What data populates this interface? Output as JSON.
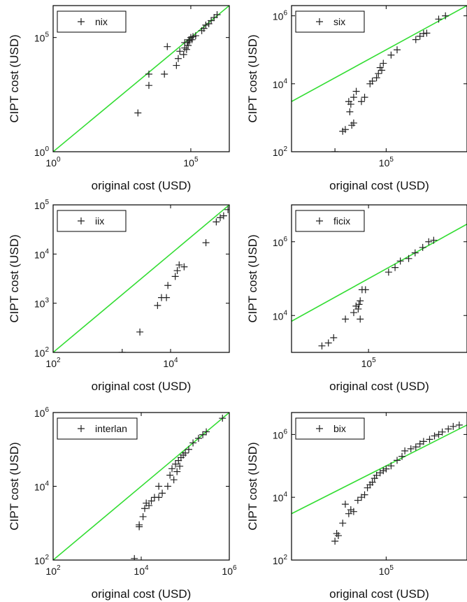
{
  "figure": {
    "colors": {
      "marker": "#222222",
      "diagonal": "#33dd33",
      "axes": "#000000"
    }
  },
  "chart_data": [
    {
      "type": "scatter",
      "scale": "log-log",
      "legend_label": "nix",
      "xlabel": "original cost (USD)",
      "ylabel": "CIPT cost (USD)",
      "xlim": [
        1,
        2500000
      ],
      "ylim": [
        1,
        2500000
      ],
      "xticks": [
        1,
        100000
      ],
      "yticks": [
        1,
        100000
      ],
      "diagonal": true,
      "points": [
        [
          1200,
          50
        ],
        [
          3000,
          2500
        ],
        [
          3000,
          800
        ],
        [
          11000,
          2500
        ],
        [
          14000,
          40000
        ],
        [
          30000,
          6000
        ],
        [
          35000,
          12000
        ],
        [
          40000,
          25000
        ],
        [
          55000,
          18000
        ],
        [
          60000,
          35000
        ],
        [
          60000,
          60000
        ],
        [
          70000,
          30000
        ],
        [
          75000,
          60000
        ],
        [
          80000,
          45000
        ],
        [
          85000,
          80000
        ],
        [
          90000,
          70000
        ],
        [
          100000,
          100000
        ],
        [
          110000,
          80000
        ],
        [
          120000,
          110000
        ],
        [
          150000,
          120000
        ],
        [
          250000,
          200000
        ],
        [
          300000,
          250000
        ],
        [
          350000,
          350000
        ],
        [
          450000,
          400000
        ],
        [
          550000,
          550000
        ],
        [
          700000,
          750000
        ],
        [
          900000,
          1000000
        ]
      ]
    },
    {
      "type": "scatter",
      "scale": "log-log",
      "legend_label": "six",
      "xlabel": "original cost (USD)",
      "ylabel": "CIPT cost (USD)",
      "xlim": [
        3000,
        2000000
      ],
      "ylim": [
        100,
        2000000
      ],
      "xticks": [
        100000
      ],
      "yticks": [
        100,
        10000,
        1000000
      ],
      "diagonal": true,
      "points": [
        [
          15000,
          100
        ],
        [
          20000,
          400
        ],
        [
          22000,
          450
        ],
        [
          25000,
          3000
        ],
        [
          26000,
          1500
        ],
        [
          27000,
          2500
        ],
        [
          28000,
          600
        ],
        [
          30000,
          700
        ],
        [
          30000,
          4000
        ],
        [
          33000,
          6000
        ],
        [
          40000,
          3000
        ],
        [
          45000,
          4000
        ],
        [
          55000,
          10000
        ],
        [
          60000,
          12000
        ],
        [
          70000,
          15000
        ],
        [
          75000,
          20000
        ],
        [
          80000,
          30000
        ],
        [
          85000,
          25000
        ],
        [
          90000,
          40000
        ],
        [
          120000,
          70000
        ],
        [
          150000,
          100000
        ],
        [
          300000,
          200000
        ],
        [
          350000,
          250000
        ],
        [
          400000,
          300000
        ],
        [
          450000,
          310000
        ],
        [
          700000,
          800000
        ],
        [
          900000,
          1000000
        ]
      ]
    },
    {
      "type": "scatter",
      "scale": "log-log",
      "legend_label": "iix",
      "xlabel": "original cost (USD)",
      "ylabel": "CIPT cost (USD)",
      "xlim": [
        100,
        100000
      ],
      "ylim": [
        100,
        100000
      ],
      "xticks": [
        100,
        10000
      ],
      "yticks": [
        100,
        1000,
        10000,
        100000
      ],
      "diagonal": true,
      "points": [
        [
          1500,
          100
        ],
        [
          3000,
          260
        ],
        [
          6000,
          900
        ],
        [
          7000,
          1300
        ],
        [
          8500,
          1300
        ],
        [
          9000,
          2300
        ],
        [
          12000,
          3500
        ],
        [
          13000,
          4600
        ],
        [
          14000,
          6000
        ],
        [
          17000,
          5500
        ],
        [
          40000,
          17000
        ],
        [
          60000,
          45000
        ],
        [
          70000,
          55000
        ],
        [
          80000,
          60000
        ],
        [
          95000,
          80000
        ]
      ]
    },
    {
      "type": "scatter",
      "scale": "log-log",
      "legend_label": "ficix",
      "xlabel": "original cost (USD)",
      "ylabel": "CIPT cost (USD)",
      "xlim": [
        7000,
        3000000
      ],
      "ylim": [
        1000,
        10000000
      ],
      "xticks": [
        100000
      ],
      "yticks": [
        10000,
        1000000
      ],
      "diagonal": true,
      "points": [
        [
          20000,
          1500
        ],
        [
          25000,
          1800
        ],
        [
          30000,
          2500
        ],
        [
          45000,
          8000
        ],
        [
          60000,
          12000
        ],
        [
          65000,
          18000
        ],
        [
          70000,
          15000
        ],
        [
          72000,
          20000
        ],
        [
          75000,
          25000
        ],
        [
          75000,
          8000
        ],
        [
          80000,
          50000
        ],
        [
          90000,
          50000
        ],
        [
          200000,
          150000
        ],
        [
          250000,
          200000
        ],
        [
          300000,
          300000
        ],
        [
          400000,
          350000
        ],
        [
          500000,
          500000
        ],
        [
          650000,
          700000
        ],
        [
          800000,
          1000000
        ],
        [
          950000,
          1100000
        ]
      ]
    },
    {
      "type": "scatter",
      "scale": "log-log",
      "legend_label": "interlan",
      "xlabel": "original cost (USD)",
      "ylabel": "CIPT cost (USD)",
      "xlim": [
        100,
        1000000
      ],
      "ylim": [
        100,
        1000000
      ],
      "xticks": [
        100,
        10000,
        1000000
      ],
      "yticks": [
        100,
        10000,
        1000000
      ],
      "diagonal": true,
      "points": [
        [
          7000,
          110
        ],
        [
          9000,
          800
        ],
        [
          9000,
          900
        ],
        [
          11000,
          1500
        ],
        [
          12000,
          2500
        ],
        [
          13000,
          3500
        ],
        [
          15000,
          3000
        ],
        [
          17000,
          4000
        ],
        [
          20000,
          5000
        ],
        [
          25000,
          10000
        ],
        [
          25000,
          5000
        ],
        [
          30000,
          6500
        ],
        [
          40000,
          10000
        ],
        [
          45000,
          20000
        ],
        [
          50000,
          30000
        ],
        [
          55000,
          15000
        ],
        [
          60000,
          40000
        ],
        [
          65000,
          25000
        ],
        [
          70000,
          50000
        ],
        [
          75000,
          35000
        ],
        [
          80000,
          60000
        ],
        [
          90000,
          70000
        ],
        [
          100000,
          80000
        ],
        [
          120000,
          100000
        ],
        [
          150000,
          150000
        ],
        [
          200000,
          200000
        ],
        [
          250000,
          250000
        ],
        [
          300000,
          300000
        ],
        [
          700000,
          700000
        ]
      ]
    },
    {
      "type": "scatter",
      "scale": "log-log",
      "legend_label": "bix",
      "xlabel": "original cost (USD)",
      "ylabel": "CIPT cost (USD)",
      "xlim": [
        3000,
        2000000
      ],
      "ylim": [
        100,
        5000000
      ],
      "xticks": [
        100000
      ],
      "yticks": [
        100,
        10000,
        1000000
      ],
      "diagonal": true,
      "points": [
        [
          15000,
          400
        ],
        [
          16000,
          700
        ],
        [
          17000,
          600
        ],
        [
          20000,
          1500
        ],
        [
          22000,
          6000
        ],
        [
          25000,
          3000
        ],
        [
          27000,
          4000
        ],
        [
          30000,
          3500
        ],
        [
          35000,
          8000
        ],
        [
          40000,
          10000
        ],
        [
          45000,
          12000
        ],
        [
          50000,
          20000
        ],
        [
          55000,
          25000
        ],
        [
          60000,
          30000
        ],
        [
          65000,
          40000
        ],
        [
          70000,
          50000
        ],
        [
          80000,
          60000
        ],
        [
          90000,
          70000
        ],
        [
          100000,
          80000
        ],
        [
          120000,
          100000
        ],
        [
          150000,
          150000
        ],
        [
          180000,
          200000
        ],
        [
          200000,
          300000
        ],
        [
          250000,
          350000
        ],
        [
          300000,
          400000
        ],
        [
          350000,
          500000
        ],
        [
          400000,
          600000
        ],
        [
          500000,
          700000
        ],
        [
          600000,
          900000
        ],
        [
          700000,
          1000000
        ],
        [
          800000,
          1200000
        ],
        [
          1000000,
          1500000
        ],
        [
          1200000,
          1800000
        ],
        [
          1500000,
          2000000
        ]
      ]
    }
  ]
}
